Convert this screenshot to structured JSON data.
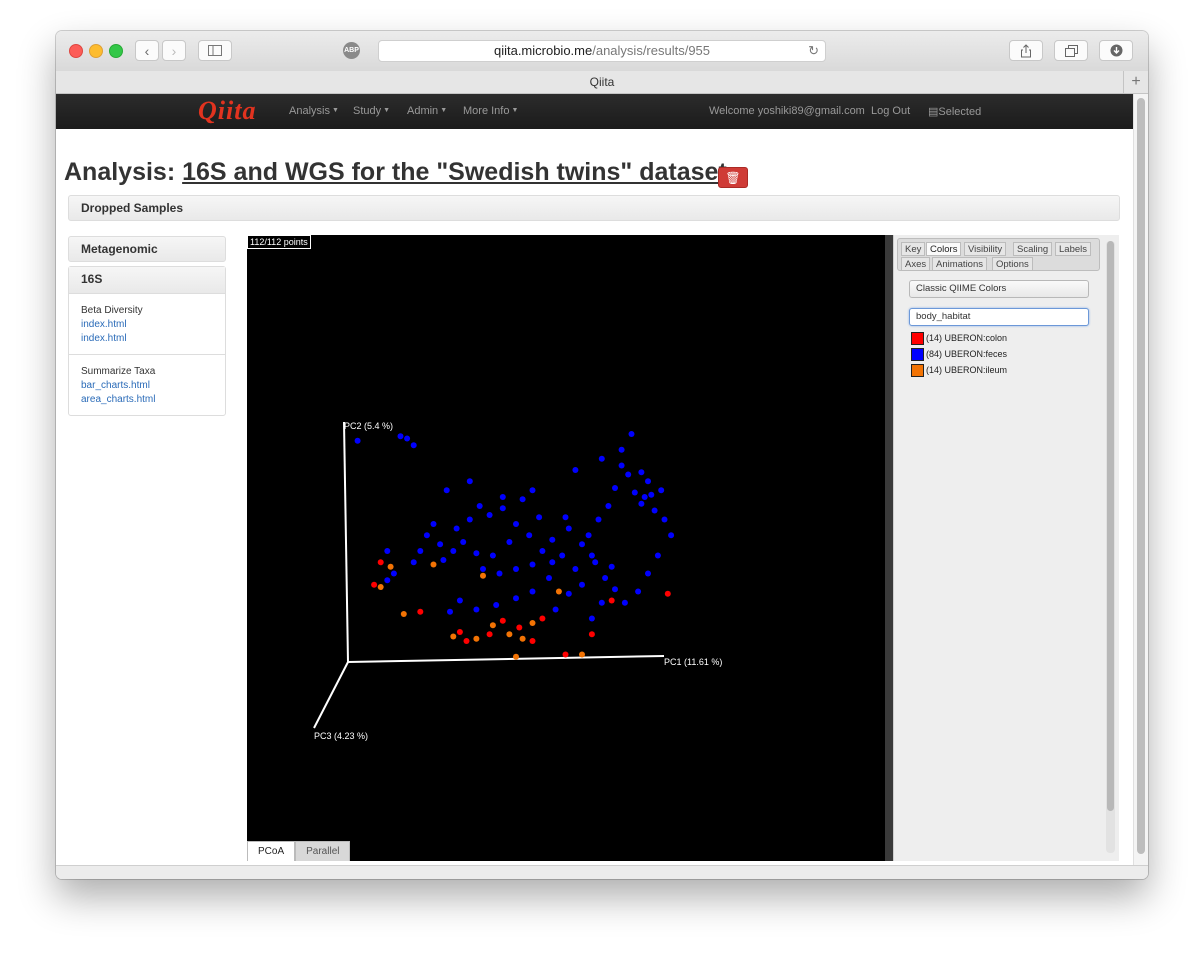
{
  "browser": {
    "url_domain": "qiita.microbio.me",
    "url_path": "/analysis/results/955",
    "tab_title": "Qiita",
    "adblock_label": "ABP"
  },
  "navbar": {
    "brand": "Qiita",
    "menus": [
      "Analysis",
      "Study",
      "Admin",
      "More Info"
    ],
    "welcome": "Welcome yoshiki89@gmail.com",
    "logout": "Log Out",
    "selected": "Selected"
  },
  "page": {
    "title_prefix": "Analysis:",
    "title_link": "16S and WGS for the \"Swedish twins\" dataset",
    "dropped_samples": "Dropped Samples"
  },
  "sidebar": {
    "metagenomic": "Metagenomic",
    "s16": "16S",
    "sections": [
      {
        "title": "Beta Diversity",
        "links": [
          "index.html",
          "index.html"
        ]
      },
      {
        "title": "Summarize Taxa",
        "links": [
          "bar_charts.html",
          "area_charts.html"
        ]
      }
    ]
  },
  "plot": {
    "points_count": "112/112 points",
    "tabs": [
      "PCoA",
      "Parallel"
    ]
  },
  "emperor": {
    "tabs_row1": [
      "Key",
      "Colors",
      "Visibility",
      "Scaling",
      "Labels"
    ],
    "tabs_row2": [
      "Axes",
      "Animations",
      "Options"
    ],
    "active_tab": "Colors",
    "color_scheme": "Classic QIIME Colors",
    "category": "body_habitat",
    "legend": [
      {
        "label": "(14) UBERON:colon",
        "color": "#ff0000"
      },
      {
        "label": "(84) UBERON:feces",
        "color": "#0000ff"
      },
      {
        "label": "(14) UBERON:ileum",
        "color": "#f27304"
      }
    ]
  },
  "chart_data": {
    "type": "scatter",
    "axes": [
      "PC1 (11.61 %)",
      "PC2 (5.4 %)",
      "PC3 (4.23 %)"
    ],
    "series": [
      {
        "name": "(84) UBERON:feces",
        "color": "#0000ff",
        "points": [
          [
            0.02,
            0.97
          ],
          [
            0.15,
            0.99
          ],
          [
            0.17,
            0.98
          ],
          [
            0.19,
            0.95
          ],
          [
            0.85,
            1.0
          ],
          [
            0.82,
            0.93
          ],
          [
            0.76,
            0.89
          ],
          [
            0.68,
            0.84
          ],
          [
            0.29,
            0.75
          ],
          [
            0.36,
            0.79
          ],
          [
            0.46,
            0.72
          ],
          [
            0.52,
            0.71
          ],
          [
            0.55,
            0.75
          ],
          [
            0.57,
            0.63
          ],
          [
            0.61,
            0.53
          ],
          [
            0.65,
            0.63
          ],
          [
            0.82,
            0.86
          ],
          [
            0.84,
            0.82
          ],
          [
            0.88,
            0.83
          ],
          [
            0.9,
            0.79
          ],
          [
            0.94,
            0.75
          ],
          [
            0.91,
            0.73
          ],
          [
            0.89,
            0.72
          ],
          [
            0.86,
            0.74
          ],
          [
            0.8,
            0.76
          ],
          [
            0.78,
            0.68
          ],
          [
            0.75,
            0.62
          ],
          [
            0.72,
            0.55
          ],
          [
            0.73,
            0.46
          ],
          [
            0.68,
            0.4
          ],
          [
            0.61,
            0.43
          ],
          [
            0.58,
            0.48
          ],
          [
            0.55,
            0.42
          ],
          [
            0.5,
            0.4
          ],
          [
            0.45,
            0.38
          ],
          [
            0.4,
            0.4
          ],
          [
            0.38,
            0.47
          ],
          [
            0.34,
            0.52
          ],
          [
            0.31,
            0.48
          ],
          [
            0.27,
            0.51
          ],
          [
            0.21,
            0.48
          ],
          [
            0.19,
            0.43
          ],
          [
            0.11,
            0.48
          ],
          [
            0.13,
            0.38
          ],
          [
            0.11,
            0.35
          ],
          [
            0.25,
            0.6
          ],
          [
            0.32,
            0.58
          ],
          [
            0.36,
            0.62
          ],
          [
            0.39,
            0.68
          ],
          [
            0.42,
            0.64
          ],
          [
            0.46,
            0.67
          ],
          [
            0.5,
            0.6
          ],
          [
            0.54,
            0.55
          ],
          [
            0.48,
            0.52
          ],
          [
            0.43,
            0.46
          ],
          [
            0.66,
            0.58
          ],
          [
            0.7,
            0.51
          ],
          [
            0.74,
            0.43
          ],
          [
            0.77,
            0.36
          ],
          [
            0.8,
            0.31
          ],
          [
            0.83,
            0.25
          ],
          [
            0.87,
            0.3
          ],
          [
            0.9,
            0.38
          ],
          [
            0.93,
            0.46
          ],
          [
            0.97,
            0.55
          ],
          [
            0.95,
            0.62
          ],
          [
            0.92,
            0.66
          ],
          [
            0.88,
            0.69
          ],
          [
            0.6,
            0.36
          ],
          [
            0.55,
            0.3
          ],
          [
            0.5,
            0.27
          ],
          [
            0.44,
            0.24
          ],
          [
            0.38,
            0.22
          ],
          [
            0.33,
            0.26
          ],
          [
            0.3,
            0.21
          ],
          [
            0.62,
            0.22
          ],
          [
            0.66,
            0.29
          ],
          [
            0.7,
            0.33
          ],
          [
            0.76,
            0.25
          ],
          [
            0.73,
            0.18
          ],
          [
            0.79,
            0.41
          ],
          [
            0.64,
            0.46
          ],
          [
            0.23,
            0.55
          ],
          [
            0.28,
            0.44
          ]
        ]
      },
      {
        "name": "(14) UBERON:colon",
        "color": "#ff0000",
        "points": [
          [
            0.09,
            0.43
          ],
          [
            0.07,
            0.33
          ],
          [
            0.21,
            0.21
          ],
          [
            0.33,
            0.12
          ],
          [
            0.35,
            0.08
          ],
          [
            0.42,
            0.11
          ],
          [
            0.46,
            0.17
          ],
          [
            0.51,
            0.14
          ],
          [
            0.55,
            0.08
          ],
          [
            0.58,
            0.18
          ],
          [
            0.65,
            0.02
          ],
          [
            0.73,
            0.11
          ],
          [
            0.79,
            0.26
          ],
          [
            0.96,
            0.29
          ]
        ]
      },
      {
        "name": "(14) UBERON:ileum",
        "color": "#f27304",
        "points": [
          [
            0.12,
            0.41
          ],
          [
            0.09,
            0.32
          ],
          [
            0.16,
            0.2
          ],
          [
            0.31,
            0.1
          ],
          [
            0.38,
            0.09
          ],
          [
            0.43,
            0.15
          ],
          [
            0.48,
            0.11
          ],
          [
            0.52,
            0.09
          ],
          [
            0.55,
            0.16
          ],
          [
            0.63,
            0.3
          ],
          [
            0.7,
            0.02
          ],
          [
            0.5,
            0.01
          ],
          [
            0.4,
            0.37
          ],
          [
            0.25,
            0.42
          ]
        ]
      }
    ]
  }
}
